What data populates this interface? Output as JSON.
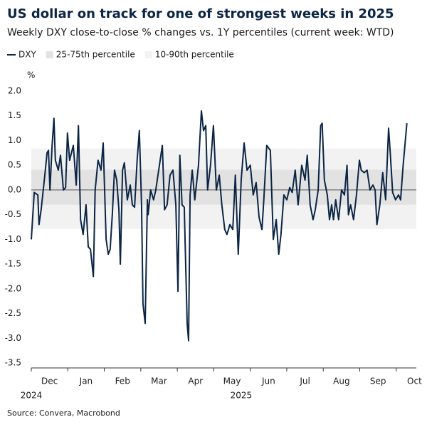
{
  "chart_data": {
    "type": "line",
    "title": "US dollar on track for one of strongest weeks in 2025",
    "subtitle": "Weekly DXY close-to-close % changes vs. 1Y percentiles (current week: WTD)",
    "y_label": "%",
    "source": "Source: Convera, Macrobond",
    "x": [
      0,
      0.08,
      0.18,
      0.21,
      0.27,
      0.37,
      0.43,
      0.47,
      0.51,
      0.57,
      0.62,
      0.66,
      0.74,
      0.8,
      0.88,
      0.94,
      0.99,
      1.05,
      1.15,
      1.23,
      1.29,
      1.35,
      1.42,
      1.5,
      1.56,
      1.62,
      1.7,
      1.75,
      1.83,
      1.91,
      1.97,
      2.05,
      2.11,
      2.16,
      2.22,
      2.28,
      2.34,
      2.4,
      2.44,
      2.5,
      2.55,
      2.63,
      2.71,
      2.77,
      2.83,
      2.9,
      2.96,
      3.02,
      3.06,
      3.12,
      3.18,
      3.2,
      3.27,
      3.35,
      3.41,
      3.49,
      3.59,
      3.65,
      3.72,
      3.8,
      3.88,
      3.96,
      4.02,
      4.07,
      4.13,
      4.19,
      4.27,
      4.31,
      4.35,
      4.41,
      4.48,
      4.58,
      4.66,
      4.72,
      4.78,
      4.83,
      4.91,
      4.99,
      5.07,
      5.15,
      5.22,
      5.3,
      5.36,
      5.44,
      5.52,
      5.59,
      5.67,
      5.75,
      5.83,
      5.91,
      6.0,
      6.08,
      6.16,
      6.24,
      6.32,
      6.37,
      6.45,
      6.55,
      6.63,
      6.71,
      6.78,
      6.84,
      6.92,
      7.0,
      7.08,
      7.15,
      7.23,
      7.31,
      7.41,
      7.5,
      7.56,
      7.64,
      7.72,
      7.78,
      7.86,
      7.93,
      7.97,
      8.03,
      8.11,
      8.17,
      8.23,
      8.28,
      8.34,
      8.42,
      8.5,
      8.58,
      8.65,
      8.69,
      8.75,
      8.83,
      8.91,
      8.99,
      9.04,
      9.12,
      9.2,
      9.28,
      9.36,
      9.42,
      9.47,
      9.55,
      9.63,
      9.71,
      9.79,
      9.84,
      9.9,
      9.98,
      10.06,
      10.12,
      10.19,
      10.29
    ],
    "series": [
      {
        "name": "DXY",
        "color": "#0b2545",
        "values": [
          -1.0,
          -0.05,
          -0.1,
          -0.7,
          -0.4,
          0.3,
          0.75,
          0.8,
          0.0,
          0.9,
          1.45,
          0.6,
          0.4,
          0.7,
          0.0,
          0.05,
          1.15,
          0.6,
          0.9,
          0.1,
          1.3,
          -0.6,
          -0.9,
          -0.3,
          -1.15,
          -1.2,
          -1.75,
          0.0,
          0.6,
          0.4,
          0.95,
          -1.0,
          -1.3,
          -1.2,
          -0.5,
          0.4,
          0.2,
          -0.4,
          -1.5,
          0.4,
          0.55,
          -0.2,
          0.1,
          -0.3,
          -0.35,
          0.6,
          1.2,
          -0.3,
          -2.3,
          -2.7,
          -0.2,
          -0.5,
          0.0,
          -0.2,
          0.0,
          0.4,
          0.9,
          -0.4,
          -0.3,
          0.3,
          0.4,
          -0.3,
          -2.05,
          0.7,
          -0.3,
          -0.35,
          -2.7,
          -3.05,
          -0.1,
          0.4,
          -0.2,
          0.5,
          1.6,
          1.2,
          1.3,
          0.0,
          0.5,
          1.3,
          0.0,
          0.3,
          -0.3,
          -0.8,
          -0.9,
          -0.7,
          -0.8,
          0.3,
          -1.3,
          0.2,
          0.95,
          0.4,
          0.5,
          -0.1,
          0.15,
          -0.55,
          -0.8,
          -0.2,
          0.9,
          0.8,
          -1.0,
          -0.6,
          -1.3,
          -0.9,
          -0.1,
          -0.2,
          0.05,
          -0.05,
          0.4,
          -0.3,
          0.5,
          0.2,
          0.7,
          -0.3,
          -0.6,
          -0.4,
          0.0,
          1.3,
          1.35,
          0.2,
          -0.1,
          -0.6,
          -0.3,
          -0.6,
          -0.2,
          -0.6,
          0.0,
          -0.1,
          0.5,
          -0.5,
          -0.3,
          -0.6,
          -0.1,
          0.6,
          0.4,
          0.35,
          0.4,
          0.0,
          0.1,
          0.0,
          -0.7,
          -0.3,
          0.35,
          -0.2,
          1.25,
          0.7,
          -0.05,
          -0.2,
          -0.1,
          -0.2,
          0.5,
          1.35
        ]
      }
    ],
    "bands": [
      {
        "name": "25-75th percentile",
        "range": [
          -0.3,
          0.41
        ],
        "color": "#e2e2e2"
      },
      {
        "name": "10-90th percentile",
        "range": [
          -0.79,
          0.84
        ],
        "color": "#f2f2f2"
      }
    ],
    "xlim": [
      0,
      10.55
    ],
    "xticks": [
      {
        "value": 0.5,
        "label": "Dec"
      },
      {
        "value": 1.5,
        "label": "Jan"
      },
      {
        "value": 2.5,
        "label": "Feb"
      },
      {
        "value": 3.5,
        "label": "Mar"
      },
      {
        "value": 4.5,
        "label": "Apr"
      },
      {
        "value": 5.5,
        "label": "May"
      },
      {
        "value": 6.5,
        "label": "Jun"
      },
      {
        "value": 7.5,
        "label": "Jul"
      },
      {
        "value": 8.5,
        "label": "Aug"
      },
      {
        "value": 9.5,
        "label": "Sep"
      },
      {
        "value": 10.5,
        "label": "Oct"
      }
    ],
    "year_ticks": [
      {
        "value": 0,
        "label": "2024"
      },
      {
        "value": 5.75,
        "label": "2025"
      }
    ],
    "ylim": [
      -3.6,
      2.0
    ],
    "yticks": [
      {
        "value": 2.0,
        "label": "2.0"
      },
      {
        "value": 1.5,
        "label": "1.5"
      },
      {
        "value": 1.0,
        "label": "1.0"
      },
      {
        "value": 0.5,
        "label": "0.5"
      },
      {
        "value": 0,
        "label": "0.0"
      },
      {
        "value": -0.5,
        "label": "-0.5"
      },
      {
        "value": -1.0,
        "label": "-1.0"
      },
      {
        "value": -1.5,
        "label": "-1.5"
      },
      {
        "value": -2.0,
        "label": "-2.0"
      },
      {
        "value": -2.5,
        "label": "-2.5"
      },
      {
        "value": -3.0,
        "label": "-3.0"
      },
      {
        "value": -3.5,
        "label": "-3.5"
      }
    ]
  }
}
